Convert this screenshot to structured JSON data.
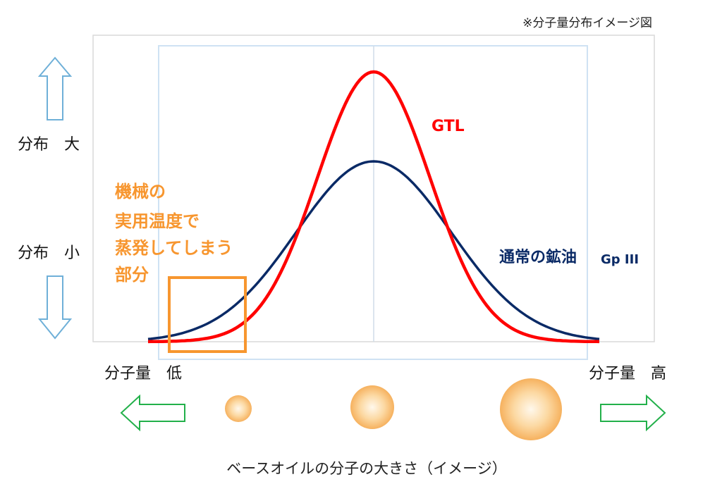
{
  "header": {
    "note": "※分子量分布イメージ図"
  },
  "y_labels": {
    "high": "分布　大",
    "low": "分布　小"
  },
  "annotation": {
    "lines": [
      "機械の",
      "実用温度で",
      "蒸発してしまう",
      "部分"
    ]
  },
  "curves": {
    "gtl": "GTL",
    "mineral": "通常の鉱油",
    "mineral_grade": "Gp III"
  },
  "x_labels": {
    "low": "分子量　低",
    "high": "分子量　高"
  },
  "footer": {
    "caption": "ベースオイルの分子の大きさ（イメージ）"
  }
}
